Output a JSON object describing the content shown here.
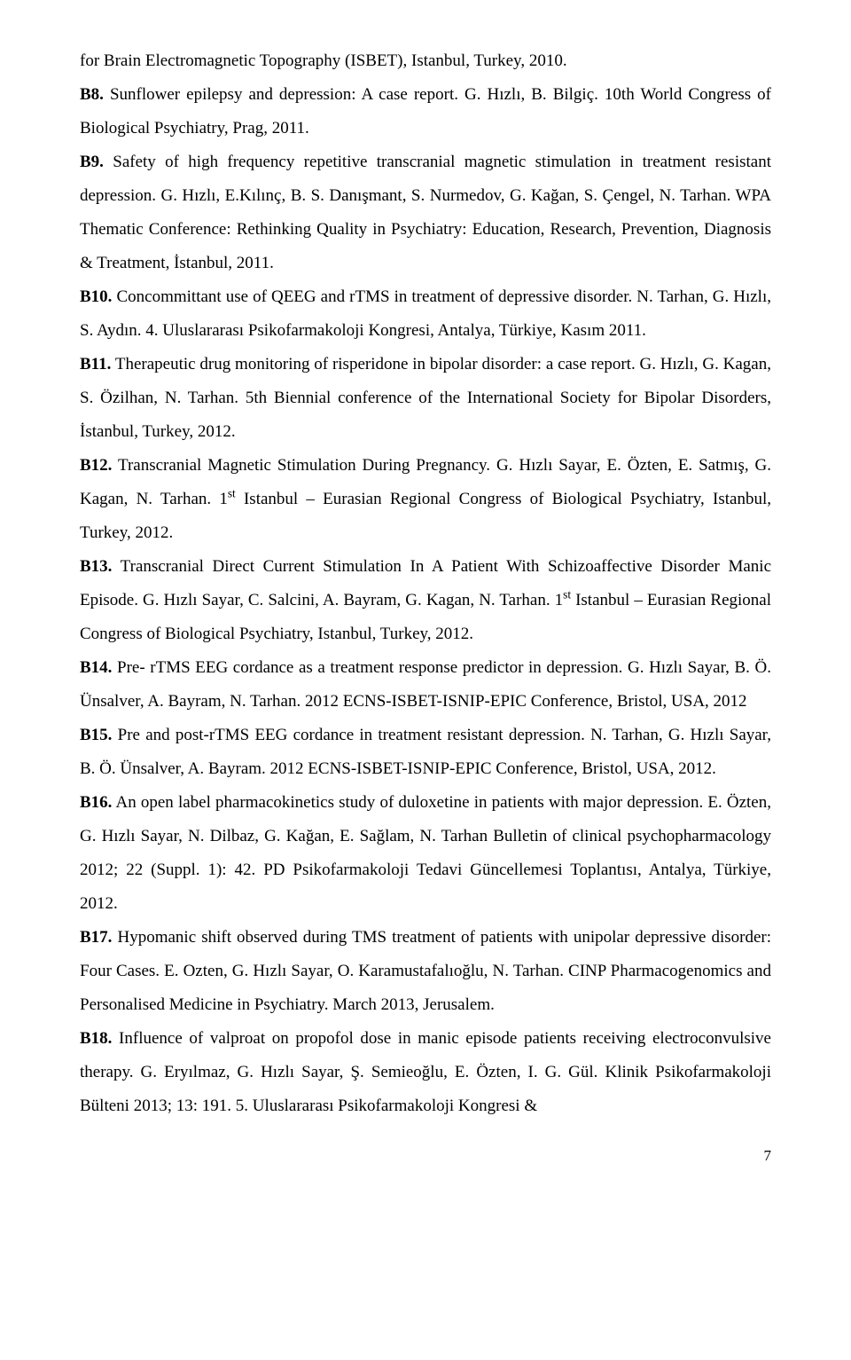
{
  "page_number": "7",
  "items": [
    {
      "label": "",
      "text": "for Brain Electromagnetic Topography (ISBET),  Istanbul, Turkey, 2010."
    },
    {
      "label": "B8.",
      "text": " Sunflower epilepsy and depression: A case report. G. Hızlı, B. Bilgiç. 10th World Congress of Biological Psychiatry, Prag, 2011."
    },
    {
      "label": "B9.",
      "text": " Safety of high frequency repetitive transcranial magnetic stimulation in treatment resistant depression. G. Hızlı, E.Kılınç, B. S. Danışmant, S. Nurmedov, G. Kağan, S. Çengel, N. Tarhan. WPA Thematic Conference: Rethinking Quality in Psychiatry: Education, Research, Prevention, Diagnosis & Treatment, İstanbul, 2011."
    },
    {
      "label": "B10.",
      "text": " Concommittant use of QEEG and rTMS in treatment of depressive disorder. N. Tarhan, G. Hızlı, S. Aydın. 4. Uluslararası Psikofarmakoloji Kongresi, Antalya, Türkiye, Kasım 2011."
    },
    {
      "label": "B11.",
      "text": " Therapeutic drug monitoring of risperidone in bipolar disorder: a case report. G. Hızlı, G. Kagan, S. Özilhan, N. Tarhan. 5th Biennial conference of the International Society for Bipolar Disorders, İstanbul, Turkey, 2012."
    },
    {
      "label": "B12.",
      "text": " Transcranial Magnetic Stimulation During Pregnancy. G. Hızlı Sayar, E. Özten, E. Satmış, G. Kagan, N. Tarhan. 1",
      "sup": "st",
      "text2": " Istanbul – Eurasian Regional Congress of Biological Psychiatry, Istanbul, Turkey, 2012."
    },
    {
      "label": "B13.",
      "text": " Transcranial Direct Current Stimulation In A Patient With Schizoaffective Disorder Manic Episode. G. Hızlı Sayar, C. Salcini, A. Bayram, G. Kagan, N. Tarhan. 1",
      "sup": "st",
      "text2": " Istanbul – Eurasian Regional Congress of Biological Psychiatry, Istanbul, Turkey, 2012."
    },
    {
      "label": "B14.",
      "text": " Pre- rTMS EEG cordance as a treatment response predictor in depression. G. Hızlı Sayar, B. Ö. Ünsalver, A. Bayram, N. Tarhan. 2012 ECNS-ISBET-ISNIP-EPIC Conference, Bristol, USA, 2012"
    },
    {
      "label": "B15.",
      "text": " Pre and post-rTMS EEG cordance in treatment resistant depression. N.  Tarhan, G. Hızlı Sayar, B. Ö. Ünsalver, A. Bayram. 2012 ECNS-ISBET-ISNIP-EPIC Conference, Bristol, USA, 2012."
    },
    {
      "label": "B16.",
      "text": " An open label pharmacokinetics study of duloxetine in patients with major depression. E. Özten, G. Hızlı Sayar, N. Dilbaz, G. Kağan, E. Sağlam, N. Tarhan  Bulletin of clinical psychopharmacology 2012; 22 (Suppl. 1): 42. PD Psikofarmakoloji Tedavi Güncellemesi Toplantısı, Antalya, Türkiye, 2012."
    },
    {
      "label": "B17.",
      "text": " Hypomanic shift observed during TMS treatment of patients with unipolar depressive disorder: Four Cases. E. Ozten, G. Hızlı Sayar, O. Karamustafalıoğlu, N. Tarhan. CINP Pharmacogenomics and Personalised Medicine in Psychiatry. March 2013, Jerusalem."
    },
    {
      "label": "B18.",
      "text": " Influence of valproat on propofol dose in manic episode patients receiving electroconvulsive therapy. G. Eryılmaz, G. Hızlı Sayar, Ş. Semieoğlu, E. Özten, I. G. Gül. Klinik Psikofarmakoloji Bülteni 2013; 13: 191.  5. Uluslararası Psikofarmakoloji Kongresi &"
    }
  ]
}
